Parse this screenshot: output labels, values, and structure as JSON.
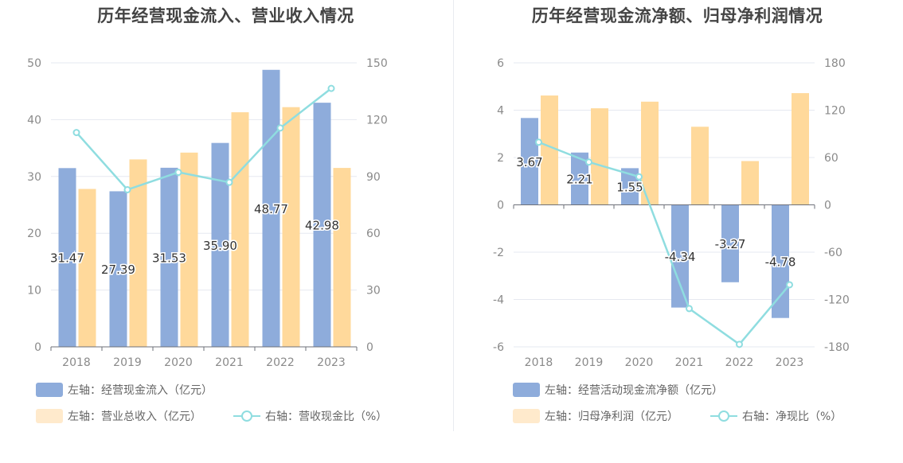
{
  "charts": [
    {
      "title": "历年经营现金流入、营业收入情况",
      "legend": [
        {
          "label": "左轴：经营现金流入（亿元）",
          "color": "#8eacdb"
        },
        {
          "label": "左轴：营业总收入（亿元）",
          "color": "#ffeacc"
        },
        {
          "label": "右轴：营收现金比（%）",
          "color": "#8fdde0"
        }
      ]
    },
    {
      "title": "历年经营现金流净额、归母净利润情况",
      "legend": [
        {
          "label": "左轴：经营活动现金流净额（亿元）",
          "color": "#8eacdb"
        },
        {
          "label": "左轴：归母净利润（亿元）",
          "color": "#ffeacc"
        },
        {
          "label": "右轴：净现比（%）",
          "color": "#8fdde0"
        }
      ]
    }
  ],
  "chart_data": [
    {
      "type": "bar",
      "title": "历年经营现金流入、营业收入情况",
      "categories": [
        "2018",
        "2019",
        "2020",
        "2021",
        "2022",
        "2023"
      ],
      "left_ticks": [
        "0",
        "10",
        "20",
        "30",
        "40",
        "50"
      ],
      "right_ticks": [
        "0",
        "30",
        "60",
        "90",
        "120",
        "150"
      ],
      "ylim_left": [
        0,
        50
      ],
      "ylim_right": [
        0,
        150
      ],
      "series": [
        {
          "name": "左轴：经营现金流入（亿元）",
          "axis": "left",
          "kind": "bar",
          "color": "#8eacdb",
          "values": [
            31.47,
            27.39,
            31.53,
            35.9,
            48.77,
            42.98
          ],
          "labels": [
            "31.47",
            "27.39",
            "31.53",
            "35.90",
            "48.77",
            "42.98"
          ]
        },
        {
          "name": "左轴：营业总收入（亿元）",
          "axis": "left",
          "kind": "bar",
          "color": "#ffd99b",
          "values": [
            27.8,
            33.0,
            34.2,
            41.3,
            42.2,
            31.5
          ]
        },
        {
          "name": "右轴：营收现金比（%）",
          "axis": "right",
          "kind": "line",
          "color": "#8fdde0",
          "values": [
            113.2,
            83.0,
            92.2,
            86.9,
            115.6,
            136.5
          ]
        }
      ]
    },
    {
      "type": "bar",
      "title": "历年经营现金流净额、归母净利润情况",
      "categories": [
        "2018",
        "2019",
        "2020",
        "2021",
        "2022",
        "2023"
      ],
      "left_ticks": [
        "-6",
        "-4",
        "-2",
        "0",
        "2",
        "4",
        "6"
      ],
      "right_ticks": [
        "-180",
        "-120",
        "-60",
        "0",
        "60",
        "120",
        "180"
      ],
      "ylim_left": [
        -6,
        6
      ],
      "ylim_right": [
        -180,
        180
      ],
      "series": [
        {
          "name": "左轴：经营活动现金流净额（亿元）",
          "axis": "left",
          "kind": "bar",
          "color": "#8eacdb",
          "values": [
            3.67,
            2.21,
            1.55,
            -4.34,
            -3.27,
            -4.78
          ],
          "labels": [
            "3.67",
            "2.21",
            "1.55",
            "-4.34",
            "-3.27",
            "-4.78"
          ]
        },
        {
          "name": "左轴：归母净利润（亿元）",
          "axis": "left",
          "kind": "bar",
          "color": "#ffd99b",
          "values": [
            4.62,
            4.08,
            4.36,
            3.3,
            1.85,
            4.72
          ]
        },
        {
          "name": "右轴：净现比（%）",
          "axis": "right",
          "kind": "line",
          "color": "#8fdde0",
          "values": [
            79.4,
            54.2,
            35.6,
            -131.5,
            -176.8,
            -101.3
          ]
        }
      ]
    }
  ]
}
